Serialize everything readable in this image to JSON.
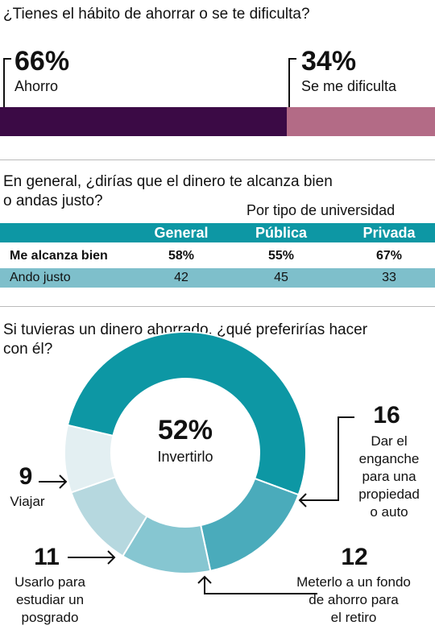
{
  "section1": {
    "question": "¿Tienes el hábito de ahorrar o se te dificulta?",
    "colors": {
      "ahorro": "#3b0a45",
      "dificulta": "#b36b86"
    }
  },
  "section2": {
    "question_line1": "En general, ¿dirías que el dinero te alcanza bien",
    "question_line2": "o andas justo?",
    "subtitle": "Por tipo de universidad",
    "header": [
      "General",
      "Pública",
      "Privada"
    ],
    "colors": {
      "header": "#0d97a4",
      "alt_row": "#7ebfcb"
    }
  },
  "section3": {
    "question_line1": "Si tuvieras un dinero ahorrado, ¿qué preferirías hacer",
    "question_line2": "con él?",
    "center_pct": "52%",
    "center_label": "Invertirlo",
    "labels": {
      "enganche": [
        "Dar el",
        "enganche",
        "para una",
        "propiedad",
        "o auto"
      ],
      "retiro": [
        "Meterlo a un fondo",
        "de ahorro para",
        "el retiro"
      ],
      "posgrado": [
        "Usarlo para",
        "estudiar un",
        "posgrado"
      ],
      "viajar": [
        "Viajar"
      ]
    },
    "values_text": {
      "enganche": "16",
      "retiro": "12",
      "posgrado": "11",
      "viajar": "9"
    }
  },
  "chart_data": [
    {
      "type": "bar",
      "title": "¿Tienes el hábito de ahorrar o se te dificulta?",
      "categories": [
        "Ahorro",
        "Se me dificulta"
      ],
      "values": [
        66,
        34
      ],
      "value_labels": [
        "66%",
        "34%"
      ],
      "stacked": true,
      "colors": [
        "#3b0a45",
        "#b36b86"
      ]
    },
    {
      "type": "table",
      "title": "En general, ¿dirías que el dinero te alcanza bien o andas justo?",
      "columns": [
        "General",
        "Pública",
        "Privada"
      ],
      "rows": [
        {
          "label": "Me alcanza bien",
          "values": [
            "58%",
            "55%",
            "67%"
          ]
        },
        {
          "label": "Ando justo",
          "values": [
            "42",
            "45",
            "33"
          ]
        }
      ]
    },
    {
      "type": "pie",
      "title": "Si tuvieras un dinero ahorrado, ¿qué preferirías hacer con él?",
      "categories": [
        "Invertirlo",
        "Dar el enganche para una propiedad o auto",
        "Meterlo a un fondo de ahorro para el retiro",
        "Usarlo para estudiar un posgrado",
        "Viajar"
      ],
      "values": [
        52,
        16,
        12,
        11,
        9
      ],
      "colors": [
        "#0d97a4",
        "#4aabbb",
        "#86c6d1",
        "#b6d8df",
        "#e3eff2"
      ],
      "donut": true
    }
  ]
}
